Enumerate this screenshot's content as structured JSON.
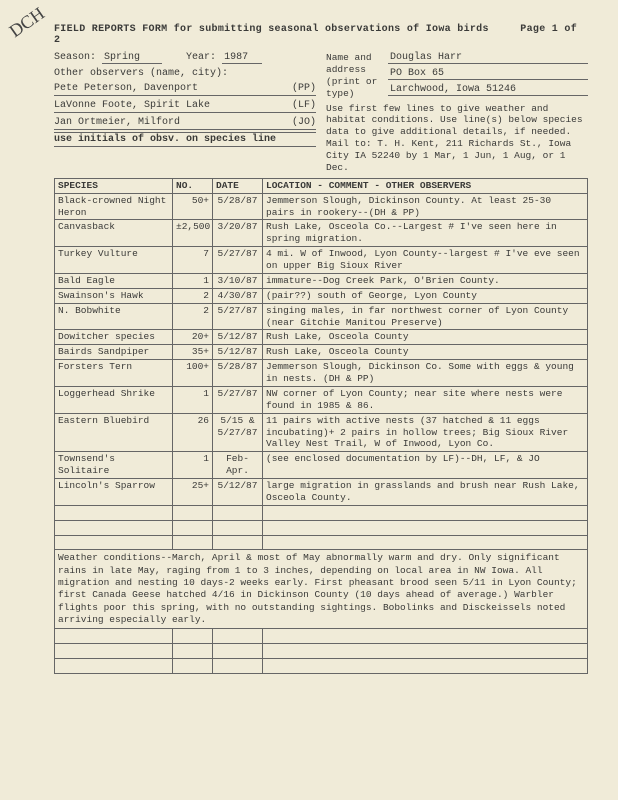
{
  "handwrite": "DCH",
  "title": "FIELD REPORTS FORM for submitting seasonal observations of Iowa birds",
  "page": "Page 1 of 2",
  "labels": {
    "season": "Season:",
    "year": "Year:",
    "others": "Other observers (name, city):",
    "nameaddr": "Name and address (print or type)",
    "initials": "use initials of obsv. on species line"
  },
  "season": "Spring",
  "year": "1987",
  "reporter": {
    "name": "Douglas Harr",
    "addr1": "PO Box 65",
    "addr2": "Larchwood, Iowa 51246"
  },
  "observers": [
    {
      "name": "Pete Peterson, Davenport",
      "init": "(PP)"
    },
    {
      "name": "LaVonne Foote, Spirit Lake",
      "init": "(LF)"
    },
    {
      "name": "Jan Ortmeier, Milford",
      "init": "(JO)"
    }
  ],
  "instructions": "Use first few lines to give weather and habitat conditions. Use line(s) below species data to give additional details, if needed. Mail to: T. H. Kent, 211 Richards St., Iowa City IA 52240 by 1 Mar, 1 Jun, 1 Aug, or 1 Dec.",
  "th": {
    "sp": "SPECIES",
    "no": "NO.",
    "date": "DATE",
    "loc": "LOCATION - COMMENT - OTHER OBSERVERS"
  },
  "rows": [
    {
      "sp": "Black-crowned Night Heron",
      "no": "50+",
      "date": "5/28/87",
      "loc": "Jemmerson Slough, Dickinson County. At least 25-30 pairs in rookery--(DH & PP)"
    },
    {
      "sp": "Canvasback",
      "no": "±2,500",
      "date": "3/20/87",
      "loc": "Rush Lake, Osceola Co.--Largest # I've seen here in spring migration."
    },
    {
      "sp": "Turkey Vulture",
      "no": "7",
      "date": "5/27/87",
      "loc": "4 mi. W of Inwood, Lyon County--largest # I've eve seen on upper Big Sioux River"
    },
    {
      "sp": "Bald Eagle",
      "no": "1",
      "date": "3/10/87",
      "loc": "immature--Dog Creek Park, O'Brien County."
    },
    {
      "sp": "Swainson's Hawk",
      "no": "2",
      "date": "4/30/87",
      "loc": "(pair??) south of George, Lyon County"
    },
    {
      "sp": "N. Bobwhite",
      "no": "2",
      "date": "5/27/87",
      "loc": "singing males, in far northwest corner of Lyon County (near Gitchie Manitou Preserve)"
    },
    {
      "sp": "Dowitcher species",
      "no": "20+",
      "date": "5/12/87",
      "loc": "Rush Lake, Osceola County"
    },
    {
      "sp": "Bairds Sandpiper",
      "no": "35+",
      "date": "5/12/87",
      "loc": "Rush Lake, Osceola County"
    },
    {
      "sp": "Forsters Tern",
      "no": "100+",
      "date": "5/28/87",
      "loc": "Jemmerson Slough, Dickinson Co. Some with eggs & young in nests. (DH & PP)"
    },
    {
      "sp": "Loggerhead Shrike",
      "no": "1",
      "date": "5/27/87",
      "loc": "NW corner of Lyon County; near site where nests were found in 1985 & 86."
    },
    {
      "sp": "Eastern Bluebird",
      "no": "26",
      "date": "5/15 & 5/27/87",
      "loc": "11 pairs with active nests (37 hatched & 11 eggs incubating)+ 2 pairs in hollow trees; Big Sioux River Valley Nest Trail, W of Inwood, Lyon Co."
    },
    {
      "sp": "Townsend's Solitaire",
      "no": "1",
      "date": "Feb-Apr.",
      "loc": "(see enclosed documentation by LF)--DH, LF, & JO"
    },
    {
      "sp": "Lincoln's Sparrow",
      "no": "25+",
      "date": "5/12/87",
      "loc": "large migration in grasslands and brush near Rush Lake, Osceola County."
    }
  ],
  "weather": "Weather conditions--March, April & most of May abnormally warm and dry. Only significant rains in late May, raging from 1 to 3 inches, depending on local area in NW Iowa. All migration and nesting 10 days-2 weeks early. First pheasant brood seen 5/11 in Lyon County; first Canada Geese hatched 4/16 in Dickinson County (10 days ahead of average.) Warbler flights poor this spring, with no outstanding sightings. Bobolinks and Disckeissels noted arriving especially early."
}
